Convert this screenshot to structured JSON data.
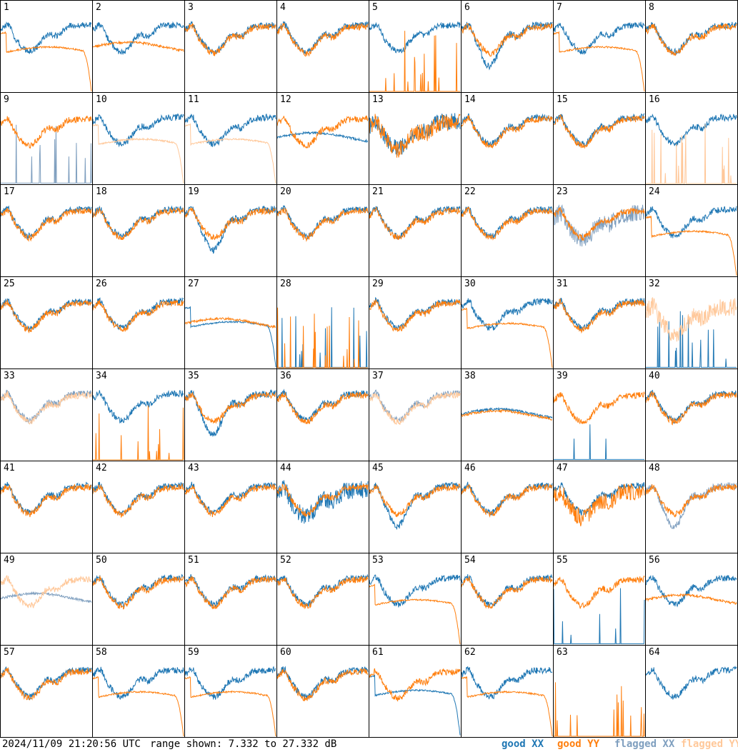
{
  "footer": {
    "timestamp": "2024/11/09 21:20:56 UTC",
    "range_text": "range shown: 7.332 to 27.332 dB",
    "legend": {
      "good_xx": "good XX",
      "good_yy": "good YY",
      "flagged_xx": "flagged XX",
      "flagged_yy": "flagged YY"
    }
  },
  "colors": {
    "good_xx": "#1f77b4",
    "good_yy": "#ff7f0e",
    "flagged_xx": "#7f9fbf",
    "flagged_yy": "#ffc89a"
  },
  "chart_data": {
    "type": "line",
    "grid": [
      8,
      8
    ],
    "ylim": [
      7.332,
      27.332
    ],
    "yunits": "dB",
    "panels": [
      {
        "id": "1",
        "xx": "good",
        "yy": "good",
        "shape_xx": "typical",
        "shape_yy": "dropoff"
      },
      {
        "id": "2",
        "xx": "good",
        "yy": "good",
        "shape_xx": "typical",
        "shape_yy": "flat"
      },
      {
        "id": "3",
        "xx": "good",
        "yy": "good",
        "shape_xx": "typical",
        "shape_yy": "typical"
      },
      {
        "id": "4",
        "xx": "good",
        "yy": "good",
        "shape_xx": "typical",
        "shape_yy": "typical"
      },
      {
        "id": "5",
        "xx": "good",
        "yy": "good",
        "shape_xx": "typical",
        "shape_yy": "spikes"
      },
      {
        "id": "6",
        "xx": "good",
        "yy": "good",
        "shape_xx": "dip",
        "shape_yy": "typical"
      },
      {
        "id": "7",
        "xx": "good",
        "yy": "good",
        "shape_xx": "typical",
        "shape_yy": "dropoff"
      },
      {
        "id": "8",
        "xx": "good",
        "yy": "good",
        "shape_xx": "typical",
        "shape_yy": "typical"
      },
      {
        "id": "9",
        "xx": "flagged",
        "yy": "good",
        "shape_xx": "spikes",
        "shape_yy": "typical"
      },
      {
        "id": "10",
        "xx": "good",
        "yy": "flagged",
        "shape_xx": "typical",
        "shape_yy": "dropoff"
      },
      {
        "id": "11",
        "xx": "good",
        "yy": "flagged",
        "shape_xx": "typical",
        "shape_yy": "dropoff"
      },
      {
        "id": "12",
        "xx": "good",
        "yy": "good",
        "shape_xx": "flat",
        "shape_yy": "typical"
      },
      {
        "id": "13",
        "xx": "good",
        "yy": "good",
        "shape_xx": "noisy",
        "shape_yy": "noisy"
      },
      {
        "id": "14",
        "xx": "good",
        "yy": "good",
        "shape_xx": "typical",
        "shape_yy": "typical"
      },
      {
        "id": "15",
        "xx": "good",
        "yy": "good",
        "shape_xx": "typical",
        "shape_yy": "typical"
      },
      {
        "id": "16",
        "xx": "good",
        "yy": "flagged",
        "shape_xx": "typical",
        "shape_yy": "spikes"
      },
      {
        "id": "17",
        "xx": "good",
        "yy": "good",
        "shape_xx": "typical",
        "shape_yy": "typical"
      },
      {
        "id": "18",
        "xx": "good",
        "yy": "good",
        "shape_xx": "typical",
        "shape_yy": "typical"
      },
      {
        "id": "19",
        "xx": "good",
        "yy": "good",
        "shape_xx": "dip",
        "shape_yy": "typical"
      },
      {
        "id": "20",
        "xx": "good",
        "yy": "good",
        "shape_xx": "typical",
        "shape_yy": "typical"
      },
      {
        "id": "21",
        "xx": "good",
        "yy": "good",
        "shape_xx": "typical",
        "shape_yy": "typical"
      },
      {
        "id": "22",
        "xx": "good",
        "yy": "good",
        "shape_xx": "typical",
        "shape_yy": "typical"
      },
      {
        "id": "23",
        "xx": "flagged",
        "yy": "good",
        "shape_xx": "noisy",
        "shape_yy": "typical"
      },
      {
        "id": "24",
        "xx": "good",
        "yy": "good",
        "shape_xx": "typical",
        "shape_yy": "dropoff"
      },
      {
        "id": "25",
        "xx": "good",
        "yy": "good",
        "shape_xx": "typical",
        "shape_yy": "typical"
      },
      {
        "id": "26",
        "xx": "good",
        "yy": "good",
        "shape_xx": "typical",
        "shape_yy": "typical"
      },
      {
        "id": "27",
        "xx": "good",
        "yy": "good",
        "shape_xx": "dropoff",
        "shape_yy": "flat"
      },
      {
        "id": "28",
        "xx": "good",
        "yy": "good",
        "shape_xx": "spikes",
        "shape_yy": "spikes"
      },
      {
        "id": "29",
        "xx": "good",
        "yy": "good",
        "shape_xx": "typical",
        "shape_yy": "typical"
      },
      {
        "id": "30",
        "xx": "good",
        "yy": "good",
        "shape_xx": "typical",
        "shape_yy": "dropoff"
      },
      {
        "id": "31",
        "xx": "good",
        "yy": "good",
        "shape_xx": "typical",
        "shape_yy": "typical"
      },
      {
        "id": "32",
        "xx": "good",
        "yy": "flagged",
        "shape_xx": "spikes",
        "shape_yy": "noisy"
      },
      {
        "id": "33",
        "xx": "flagged",
        "yy": "flagged",
        "shape_xx": "typical",
        "shape_yy": "typical"
      },
      {
        "id": "34",
        "xx": "good",
        "yy": "good",
        "shape_xx": "typical",
        "shape_yy": "spikes"
      },
      {
        "id": "35",
        "xx": "good",
        "yy": "good",
        "shape_xx": "dip",
        "shape_yy": "typical"
      },
      {
        "id": "36",
        "xx": "good",
        "yy": "good",
        "shape_xx": "typical",
        "shape_yy": "typical"
      },
      {
        "id": "37",
        "xx": "flagged",
        "yy": "flagged",
        "shape_xx": "typical",
        "shape_yy": "typical"
      },
      {
        "id": "38",
        "xx": "good",
        "yy": "good",
        "shape_xx": "flat",
        "shape_yy": "flat"
      },
      {
        "id": "39",
        "xx": "good",
        "yy": "good",
        "shape_xx": "spikes",
        "shape_yy": "typical"
      },
      {
        "id": "40",
        "xx": "good",
        "yy": "good",
        "shape_xx": "typical",
        "shape_yy": "typical"
      },
      {
        "id": "41",
        "xx": "good",
        "yy": "good",
        "shape_xx": "typical",
        "shape_yy": "typical"
      },
      {
        "id": "42",
        "xx": "good",
        "yy": "good",
        "shape_xx": "typical",
        "shape_yy": "typical"
      },
      {
        "id": "43",
        "xx": "good",
        "yy": "good",
        "shape_xx": "typical",
        "shape_yy": "typical"
      },
      {
        "id": "44",
        "xx": "good",
        "yy": "good",
        "shape_xx": "noisy",
        "shape_yy": "typical"
      },
      {
        "id": "45",
        "xx": "good",
        "yy": "good",
        "shape_xx": "dip",
        "shape_yy": "typical"
      },
      {
        "id": "46",
        "xx": "good",
        "yy": "good",
        "shape_xx": "typical",
        "shape_yy": "typical"
      },
      {
        "id": "47",
        "xx": "good",
        "yy": "good",
        "shape_xx": "typical",
        "shape_yy": "noisy"
      },
      {
        "id": "48",
        "xx": "flagged",
        "yy": "good",
        "shape_xx": "dip",
        "shape_yy": "typical"
      },
      {
        "id": "49",
        "xx": "flagged",
        "yy": "flagged",
        "shape_xx": "flat",
        "shape_yy": "typical"
      },
      {
        "id": "50",
        "xx": "good",
        "yy": "good",
        "shape_xx": "typical",
        "shape_yy": "typical"
      },
      {
        "id": "51",
        "xx": "good",
        "yy": "good",
        "shape_xx": "typical",
        "shape_yy": "typical"
      },
      {
        "id": "52",
        "xx": "good",
        "yy": "good",
        "shape_xx": "typical",
        "shape_yy": "typical"
      },
      {
        "id": "53",
        "xx": "good",
        "yy": "good",
        "shape_xx": "typical",
        "shape_yy": "dropoff"
      },
      {
        "id": "54",
        "xx": "good",
        "yy": "good",
        "shape_xx": "typical",
        "shape_yy": "typical"
      },
      {
        "id": "55",
        "xx": "good",
        "yy": "good",
        "shape_xx": "spikes",
        "shape_yy": "typical"
      },
      {
        "id": "56",
        "xx": "good",
        "yy": "good",
        "shape_xx": "typical",
        "shape_yy": "flat"
      },
      {
        "id": "57",
        "xx": "good",
        "yy": "good",
        "shape_xx": "typical",
        "shape_yy": "typical"
      },
      {
        "id": "58",
        "xx": "good",
        "yy": "good",
        "shape_xx": "typical",
        "shape_yy": "dropoff"
      },
      {
        "id": "59",
        "xx": "good",
        "yy": "good",
        "shape_xx": "typical",
        "shape_yy": "dropoff"
      },
      {
        "id": "60",
        "xx": "good",
        "yy": "good",
        "shape_xx": "typical",
        "shape_yy": "typical"
      },
      {
        "id": "61",
        "xx": "good",
        "yy": "good",
        "shape_xx": "dropoff",
        "shape_yy": "typical"
      },
      {
        "id": "62",
        "xx": "good",
        "yy": "good",
        "shape_xx": "typical",
        "shape_yy": "dropoff"
      },
      {
        "id": "63",
        "xx": "good",
        "yy": "good",
        "shape_xx": "none",
        "shape_yy": "spikes"
      },
      {
        "id": "64",
        "xx": "good",
        "yy": "good",
        "shape_xx": "typical",
        "shape_yy": "none"
      }
    ]
  }
}
